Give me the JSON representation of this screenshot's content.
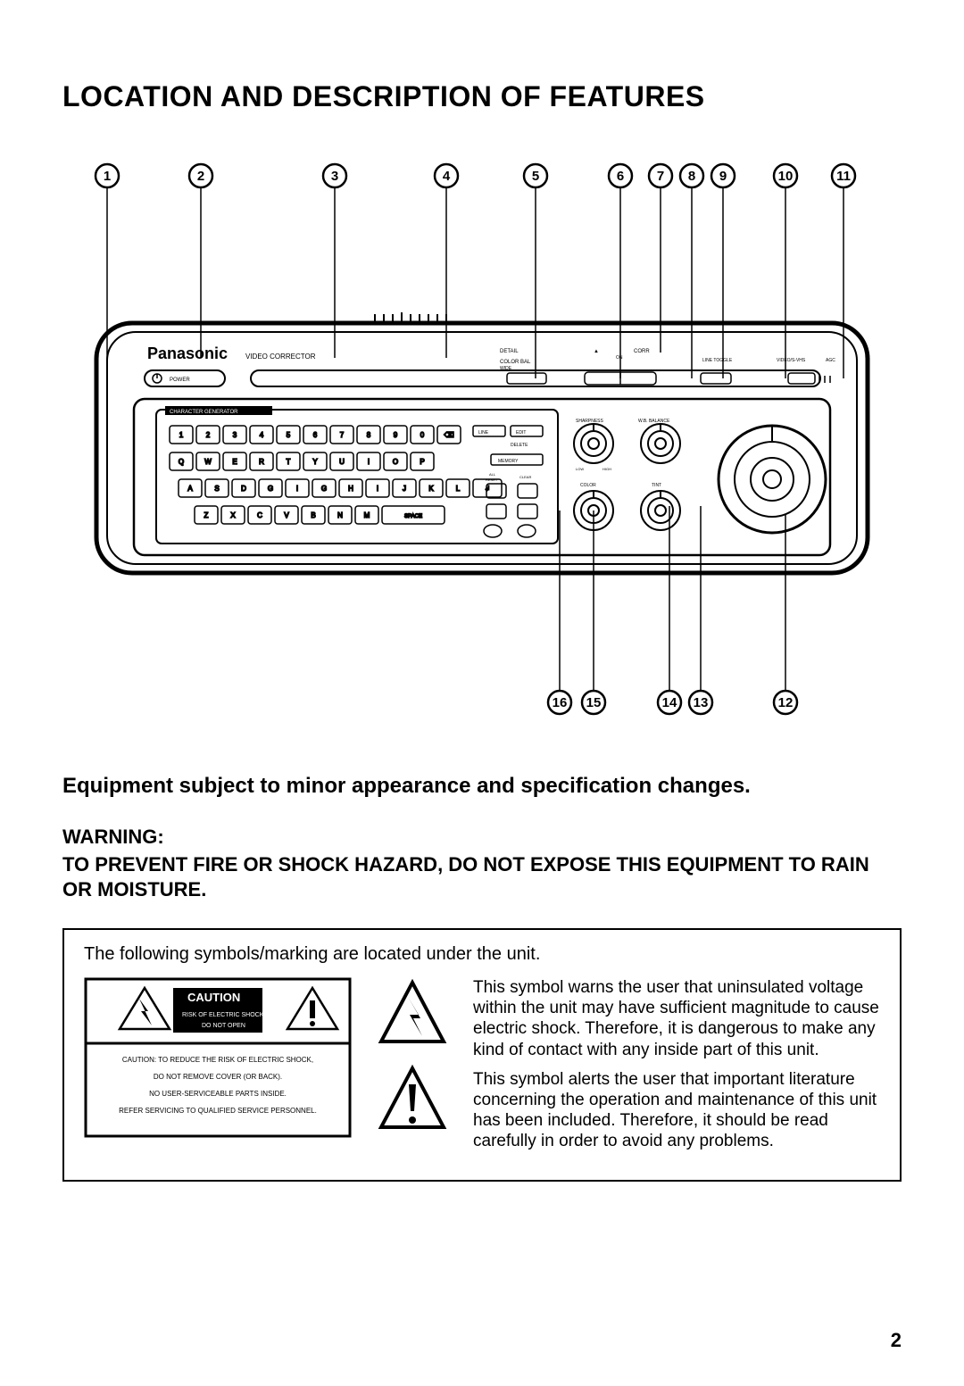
{
  "page": {
    "title": "LOCATION AND DESCRIPTION OF FEATURES",
    "subtitle": "Equipment subject to minor appearance and specification changes.",
    "page_number": "2"
  },
  "warning": {
    "heading": "WARNING:",
    "body": "TO PREVENT FIRE OR SHOCK HAZARD, DO NOT EXPOSE THIS EQUIPMENT TO RAIN OR MOISTURE."
  },
  "symbols": {
    "intro": "The following symbols/marking are located under the unit.",
    "shock_text": "This symbol warns the user that uninsulated voltage within the unit may have sufficient magnitude to cause electric shock. Therefore, it is dangerous to make any kind of contact with any inside part of this unit.",
    "alert_text": "This symbol alerts the user that important literature concerning the operation and maintenance of this unit has been included. Therefore, it should be read carefully in order to avoid any problems.",
    "caution_label": "CAUTION",
    "caution_sub1": "RISK OF ELECTRIC SHOCK",
    "caution_sub2": "DO NOT OPEN",
    "caution_body1": "CAUTION: TO REDUCE THE RISK OF ELECTRIC SHOCK,",
    "caution_body2": "DO NOT REMOVE COVER (OR BACK).",
    "caution_body3": "NO USER-SERVICEABLE PARTS INSIDE.",
    "caution_body4": "REFER SERVICING TO QUALIFIED SERVICE PERSONNEL."
  },
  "diagram": {
    "brand": "Panasonic",
    "brand_sub": "VIDEO CORRECTOR",
    "power_label": "POWER",
    "cg_label": "CHARACTER GENERATOR",
    "callouts_top": [
      "1",
      "2",
      "3",
      "4",
      "5",
      "6",
      "7",
      "8",
      "9",
      "10",
      "11"
    ],
    "callouts_bottom": [
      "16",
      "15",
      "14",
      "13",
      "12"
    ],
    "callout_top_x": [
      30,
      135,
      285,
      410,
      510,
      605,
      650,
      685,
      720,
      790,
      855
    ],
    "callout_bottom_x": [
      537,
      575,
      660,
      695,
      790
    ],
    "callout_bottom_line_y": [
      395,
      395,
      390,
      390,
      400
    ],
    "keyboard_rows": [
      [
        "1",
        "2",
        "3",
        "4",
        "5",
        "6",
        "7",
        "8",
        "9",
        "0",
        "⌫"
      ],
      [
        "Q",
        "W",
        "E",
        "R",
        "T",
        "Y",
        "U",
        "I",
        "O",
        "P"
      ],
      [
        "A",
        "S",
        "D",
        "G",
        "I",
        "G",
        "H",
        "I",
        "J",
        "K",
        "L",
        "↲"
      ],
      [
        "Z",
        "X",
        "C",
        "V",
        "B",
        "N",
        "M"
      ]
    ],
    "small_buttons": [
      "LINE",
      "EDIT",
      "DELETE",
      "MEMORY",
      "ALL RESET",
      "CLEAR"
    ],
    "knob_labels": [
      "SHARPNESS",
      "W.B. BALANCE",
      "COLOR",
      "TINT"
    ]
  },
  "style": {
    "bg": "#ffffff",
    "fg": "#000000",
    "stroke_thin": 2,
    "stroke_med": 3,
    "stroke_thick": 5,
    "font_title": 32,
    "font_sub": 24,
    "font_body": 20,
    "font_small": 8,
    "callout_radius": 13
  }
}
